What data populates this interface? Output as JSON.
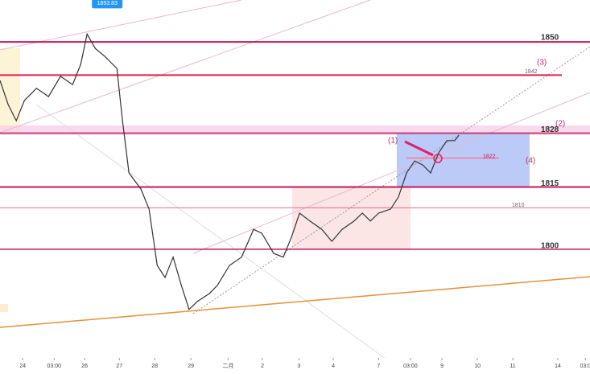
{
  "chart_data": {
    "type": "line",
    "color": "#333333",
    "x": [
      -0.64,
      -0.41,
      -0.18,
      0.05,
      0.39,
      0.73,
      1.07,
      1.41,
      1.64,
      1.82,
      2.05,
      2.32,
      2.66,
      2.82,
      3,
      3.34,
      3.57,
      3.8,
      4.02,
      4.25,
      4.48,
      4.7,
      4.93,
      5.27,
      5.5,
      5.84,
      6.18,
      6.52,
      6.75,
      7.09,
      7.36,
      7.59,
      7.82,
      8.11,
      8.45,
      8.73,
      9.02,
      9.36,
      9.59,
      9.82,
      10.05,
      10.39,
      10.61,
      10.84,
      11.07,
      11.3,
      11.52,
      11.75,
      11.98,
      12.2,
      12.32
    ],
    "values": [
      1840.7,
      1834.9,
      1831,
      1835.9,
      1838.8,
      1836.8,
      1841.7,
      1839.7,
      1844.6,
      1851.9,
      1848.4,
      1846.5,
      1843.6,
      1831,
      1818.4,
      1814.5,
      1809.7,
      1796.1,
      1793.2,
      1798.1,
      1791.3,
      1785.5,
      1787.4,
      1789.3,
      1791.3,
      1796.1,
      1798.1,
      1804.8,
      1803.9,
      1799,
      1798.1,
      1802.9,
      1808.7,
      1806.8,
      1804.8,
      1801.9,
      1804.8,
      1806.8,
      1808.7,
      1806.8,
      1808.7,
      1809.7,
      1812.6,
      1818.4,
      1821.3,
      1820.3,
      1818.4,
      1823.3,
      1826.2,
      1826.2,
      1827.5
    ],
    "xlim": [
      -0.64,
      16.02
    ],
    "ylim": [
      1773.8,
      1860.1
    ],
    "xticks": [
      {
        "value": 0,
        "label": "24"
      },
      {
        "value": 0.89,
        "label": "03:00"
      },
      {
        "value": 1.75,
        "label": "26"
      },
      {
        "value": 2.73,
        "label": "27"
      },
      {
        "value": 3.73,
        "label": "28"
      },
      {
        "value": 4.75,
        "label": "29"
      },
      {
        "value": 5.8,
        "label": "二月"
      },
      {
        "value": 6.77,
        "label": "2"
      },
      {
        "value": 7.8,
        "label": "3"
      },
      {
        "value": 8.77,
        "label": "4"
      },
      {
        "value": 10.05,
        "label": "7"
      },
      {
        "value": 10.95,
        "label": "03:00"
      },
      {
        "value": 11.84,
        "label": "9"
      },
      {
        "value": 12.84,
        "label": "10"
      },
      {
        "value": 13.84,
        "label": "11"
      },
      {
        "value": 15.11,
        "label": "14"
      },
      {
        "value": 15.89,
        "label": "03:0"
      }
    ],
    "levels": [
      1850,
      1842,
      1828,
      1822,
      1815,
      1810,
      1800
    ],
    "high": 1853.83,
    "annotations": [
      "(1)",
      "(2)",
      "(3)",
      "(4)"
    ]
  }
}
